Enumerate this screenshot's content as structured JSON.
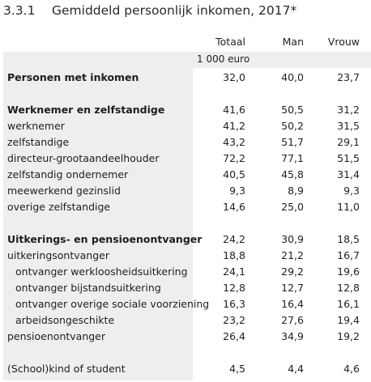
{
  "title": {
    "number": "3.3.1",
    "text": "Gemiddeld persoonlijk inkomen, 2017*"
  },
  "columns": [
    "Totaal",
    "Man",
    "Vrouw"
  ],
  "unit": "1 000 euro",
  "rows": [
    {
      "label": "Personen met inkomen",
      "bold": true,
      "indent": 0,
      "values": [
        "32,0",
        "40,0",
        "23,7"
      ]
    },
    {
      "gap": true
    },
    {
      "label": "Werknemer en zelfstandige",
      "bold": true,
      "indent": 0,
      "values": [
        "41,6",
        "50,5",
        "31,2"
      ]
    },
    {
      "label": "werknemer",
      "bold": false,
      "indent": 0,
      "values": [
        "41,2",
        "50,2",
        "31,5"
      ]
    },
    {
      "label": "zelfstandige",
      "bold": false,
      "indent": 0,
      "values": [
        "43,2",
        "51,7",
        "29,1"
      ]
    },
    {
      "label": "directeur-grootaandeelhouder",
      "bold": false,
      "indent": 0,
      "values": [
        "72,2",
        "77,1",
        "51,5"
      ]
    },
    {
      "label": "zelfstandig ondernemer",
      "bold": false,
      "indent": 0,
      "values": [
        "40,5",
        "45,8",
        "31,4"
      ]
    },
    {
      "label": "meewerkend gezinslid",
      "bold": false,
      "indent": 0,
      "values": [
        "9,3",
        "8,9",
        "9,3"
      ]
    },
    {
      "label": "overige zelfstandige",
      "bold": false,
      "indent": 0,
      "values": [
        "14,6",
        "25,0",
        "11,0"
      ]
    },
    {
      "gap": true
    },
    {
      "label": "Uitkerings- en pensioenontvanger",
      "bold": true,
      "indent": 0,
      "values": [
        "24,2",
        "30,9",
        "18,5"
      ]
    },
    {
      "label": "uitkeringsontvanger",
      "bold": false,
      "indent": 0,
      "values": [
        "18,8",
        "21,2",
        "16,7"
      ]
    },
    {
      "label": "ontvanger werkloosheidsuitkering",
      "bold": false,
      "indent": 1,
      "values": [
        "24,1",
        "29,2",
        "19,6"
      ]
    },
    {
      "label": "ontvanger bijstandsuitkering",
      "bold": false,
      "indent": 1,
      "values": [
        "12,8",
        "12,7",
        "12,8"
      ]
    },
    {
      "label": "ontvanger overige sociale voorziening",
      "bold": false,
      "indent": 1,
      "values": [
        "16,3",
        "16,4",
        "16,1"
      ]
    },
    {
      "label": "arbeidsongeschikte",
      "bold": false,
      "indent": 1,
      "values": [
        "23,2",
        "27,6",
        "19,4"
      ]
    },
    {
      "label": "pensioenontvanger",
      "bold": false,
      "indent": 0,
      "values": [
        "26,4",
        "34,9",
        "19,2"
      ]
    },
    {
      "gap": true
    },
    {
      "label": "(School)kind of student",
      "bold": false,
      "indent": 0,
      "values": [
        "4,5",
        "4,4",
        "4,6"
      ]
    }
  ]
}
